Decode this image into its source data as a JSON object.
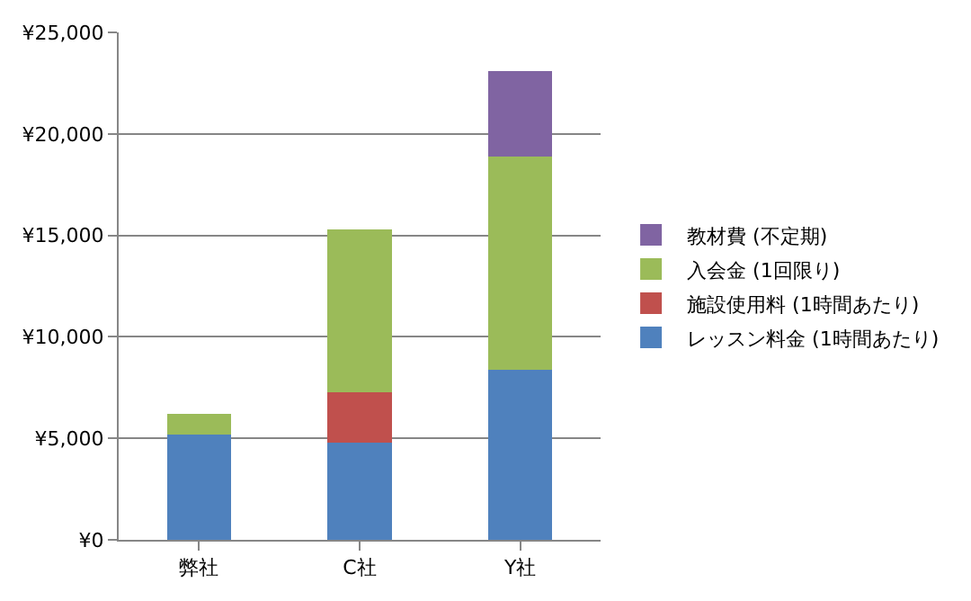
{
  "chart_data": {
    "type": "bar",
    "stacked": true,
    "categories": [
      "弊社",
      "C社",
      "Y社"
    ],
    "series": [
      {
        "name": "レッスン料金 (1時間あたり)",
        "color": "#4f81bd",
        "values": [
          5200,
          4800,
          8400
        ]
      },
      {
        "name": "施設使用料 (1時間あたり)",
        "color": "#c0504d",
        "values": [
          null,
          2450,
          null
        ]
      },
      {
        "name": "入会金 (1回限り)",
        "color": "#9bbb59",
        "values": [
          1000,
          8050,
          10500
        ]
      },
      {
        "name": "教材費 (不定期)",
        "color": "#8064a2",
        "values": [
          null,
          null,
          4200
        ]
      }
    ],
    "ylim": [
      0,
      25000
    ],
    "yticks": [
      {
        "value": 0,
        "label": "¥0"
      },
      {
        "value": 5000,
        "label": "¥5,000"
      },
      {
        "value": 10000,
        "label": "¥10,000"
      },
      {
        "value": 15000,
        "label": "¥15,000"
      },
      {
        "value": 20000,
        "label": "¥20,000"
      },
      {
        "value": 25000,
        "label": "¥25,000"
      }
    ],
    "grid": "y",
    "legend": "right"
  }
}
